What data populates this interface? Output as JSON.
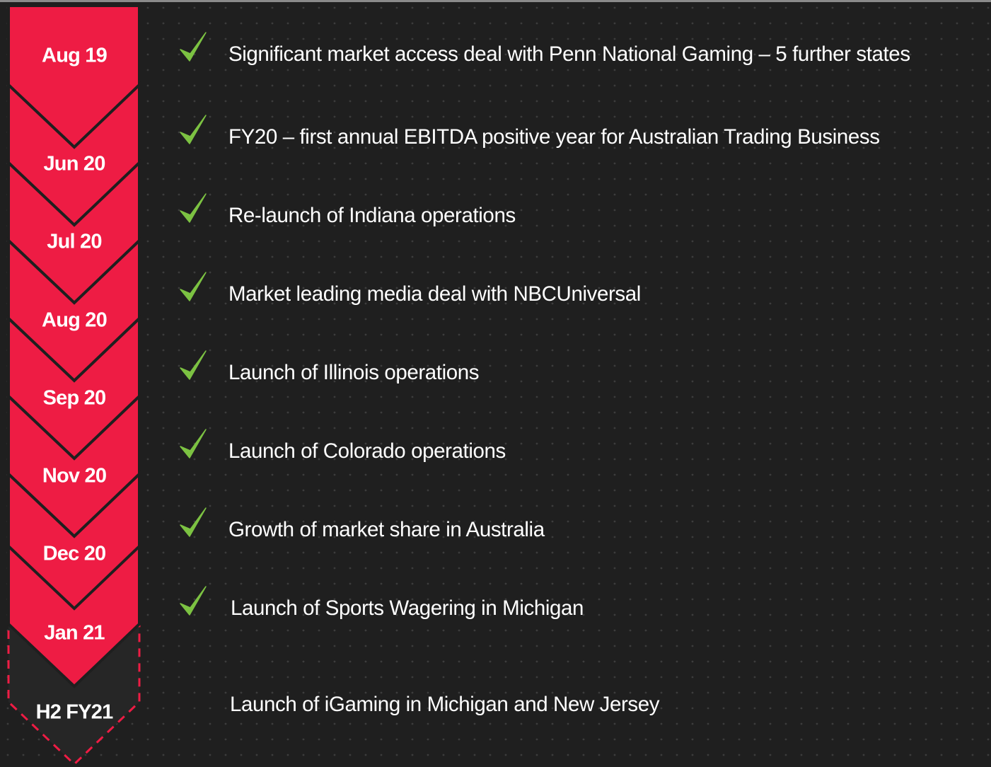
{
  "timeline": {
    "milestones": [
      {
        "date": "Aug 19",
        "text": "Significant market access deal with Penn National Gaming – 5 further states"
      },
      {
        "date": "Jun 20",
        "text": "FY20 – first annual EBITDA positive year for Australian Trading Business"
      },
      {
        "date": "Jul 20",
        "text": "Re-launch of Indiana operations"
      },
      {
        "date": "Aug 20",
        "text": "Market leading media deal with NBCUniversal"
      },
      {
        "date": "Sep 20",
        "text": "Launch of Illinois operations"
      },
      {
        "date": "Nov 20",
        "text": "Launch of Colorado operations"
      },
      {
        "date": "Dec 20",
        "text": "Growth of market share in Australia"
      },
      {
        "date": "Jan 21",
        "text": "Launch of Sports Wagering in Michigan"
      }
    ],
    "upcoming": [
      {
        "date": "H2 FY21",
        "text": "Launch of iGaming in Michigan and New Jersey"
      }
    ]
  }
}
